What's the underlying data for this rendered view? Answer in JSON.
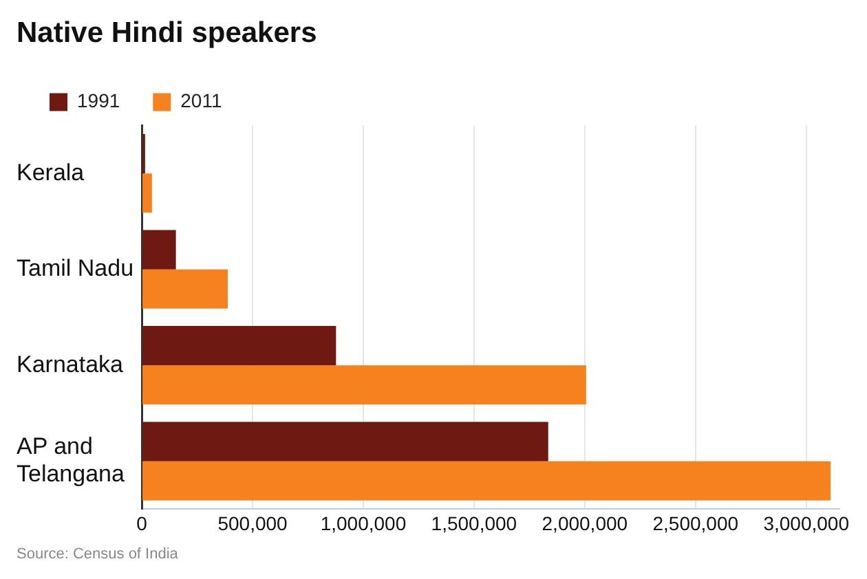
{
  "chart_data": {
    "type": "bar",
    "orientation": "horizontal",
    "title": "Native Hindi speakers",
    "categories": [
      "Kerala",
      "Tamil Nadu",
      "Karnataka",
      "AP and Telangana"
    ],
    "series": [
      {
        "name": "1991",
        "color": "#6e1a12",
        "values": [
          15000,
          154000,
          877000,
          1835000
        ]
      },
      {
        "name": "2011",
        "color": "#f5821f",
        "values": [
          46000,
          388000,
          2006000,
          3110000
        ]
      }
    ],
    "xlim": [
      0,
      3150000
    ],
    "xticks": [
      0,
      {
        "value": 500000,
        "label": "500,000"
      },
      {
        "value": 1000000,
        "label": "1,000,000"
      },
      {
        "value": 1500000,
        "label": "1,500,000"
      },
      {
        "value": 2000000,
        "label": "2,000,000"
      },
      {
        "value": 2500000,
        "label": "2,500,000"
      },
      {
        "value": 3000000,
        "label": "3,000,000"
      }
    ],
    "grid": "x",
    "legend": "top left",
    "annotations": [
      "Source: Census of India"
    ]
  }
}
